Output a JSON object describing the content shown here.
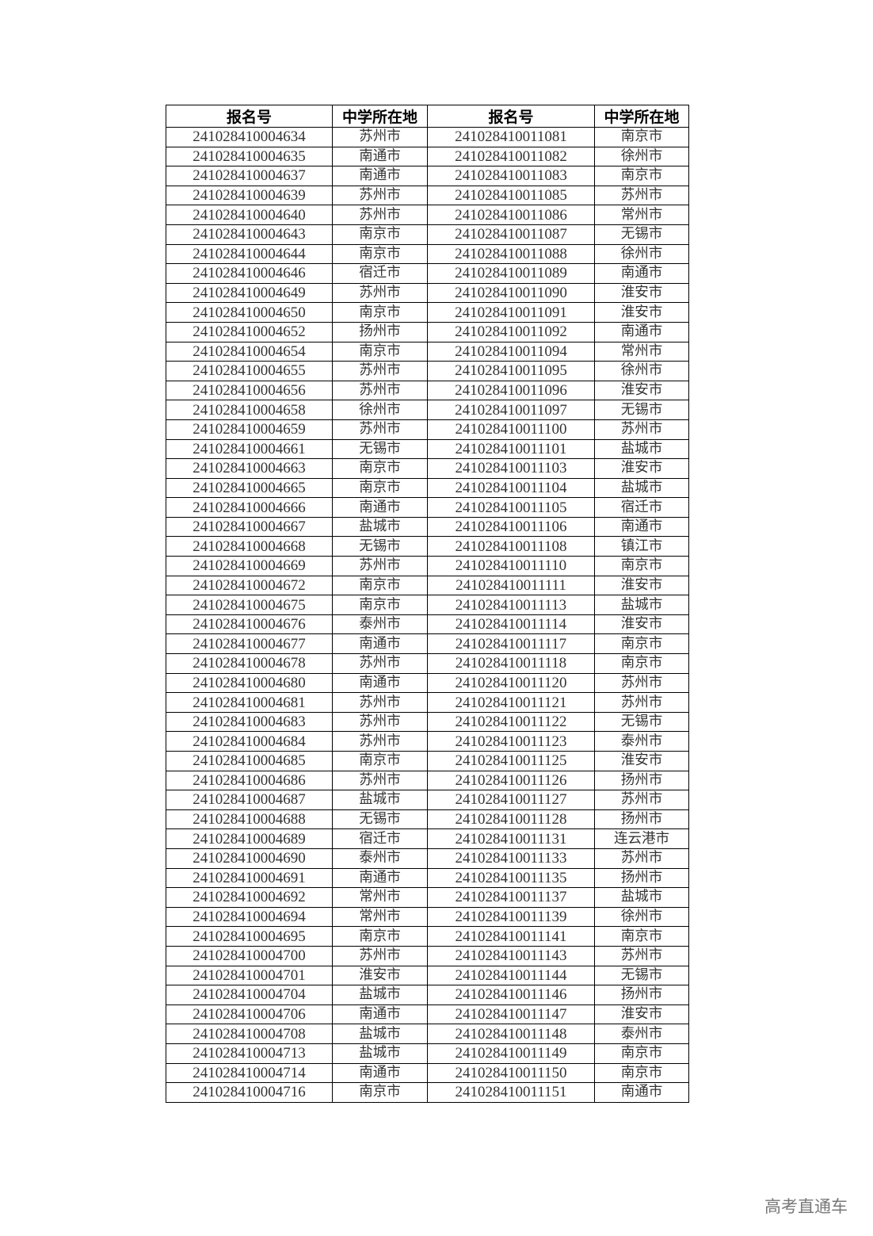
{
  "table": {
    "headers": [
      "报名号",
      "中学所在地",
      "报名号",
      "中学所在地"
    ],
    "rows": [
      [
        "241028410004634",
        "苏州市",
        "241028410011081",
        "南京市"
      ],
      [
        "241028410004635",
        "南通市",
        "241028410011082",
        "徐州市"
      ],
      [
        "241028410004637",
        "南通市",
        "241028410011083",
        "南京市"
      ],
      [
        "241028410004639",
        "苏州市",
        "241028410011085",
        "苏州市"
      ],
      [
        "241028410004640",
        "苏州市",
        "241028410011086",
        "常州市"
      ],
      [
        "241028410004643",
        "南京市",
        "241028410011087",
        "无锡市"
      ],
      [
        "241028410004644",
        "南京市",
        "241028410011088",
        "徐州市"
      ],
      [
        "241028410004646",
        "宿迁市",
        "241028410011089",
        "南通市"
      ],
      [
        "241028410004649",
        "苏州市",
        "241028410011090",
        "淮安市"
      ],
      [
        "241028410004650",
        "南京市",
        "241028410011091",
        "淮安市"
      ],
      [
        "241028410004652",
        "扬州市",
        "241028410011092",
        "南通市"
      ],
      [
        "241028410004654",
        "南京市",
        "241028410011094",
        "常州市"
      ],
      [
        "241028410004655",
        "苏州市",
        "241028410011095",
        "徐州市"
      ],
      [
        "241028410004656",
        "苏州市",
        "241028410011096",
        "淮安市"
      ],
      [
        "241028410004658",
        "徐州市",
        "241028410011097",
        "无锡市"
      ],
      [
        "241028410004659",
        "苏州市",
        "241028410011100",
        "苏州市"
      ],
      [
        "241028410004661",
        "无锡市",
        "241028410011101",
        "盐城市"
      ],
      [
        "241028410004663",
        "南京市",
        "241028410011103",
        "淮安市"
      ],
      [
        "241028410004665",
        "南京市",
        "241028410011104",
        "盐城市"
      ],
      [
        "241028410004666",
        "南通市",
        "241028410011105",
        "宿迁市"
      ],
      [
        "241028410004667",
        "盐城市",
        "241028410011106",
        "南通市"
      ],
      [
        "241028410004668",
        "无锡市",
        "241028410011108",
        "镇江市"
      ],
      [
        "241028410004669",
        "苏州市",
        "241028410011110",
        "南京市"
      ],
      [
        "241028410004672",
        "南京市",
        "241028410011111",
        "淮安市"
      ],
      [
        "241028410004675",
        "南京市",
        "241028410011113",
        "盐城市"
      ],
      [
        "241028410004676",
        "泰州市",
        "241028410011114",
        "淮安市"
      ],
      [
        "241028410004677",
        "南通市",
        "241028410011117",
        "南京市"
      ],
      [
        "241028410004678",
        "苏州市",
        "241028410011118",
        "南京市"
      ],
      [
        "241028410004680",
        "南通市",
        "241028410011120",
        "苏州市"
      ],
      [
        "241028410004681",
        "苏州市",
        "241028410011121",
        "苏州市"
      ],
      [
        "241028410004683",
        "苏州市",
        "241028410011122",
        "无锡市"
      ],
      [
        "241028410004684",
        "苏州市",
        "241028410011123",
        "泰州市"
      ],
      [
        "241028410004685",
        "南京市",
        "241028410011125",
        "淮安市"
      ],
      [
        "241028410004686",
        "苏州市",
        "241028410011126",
        "扬州市"
      ],
      [
        "241028410004687",
        "盐城市",
        "241028410011127",
        "苏州市"
      ],
      [
        "241028410004688",
        "无锡市",
        "241028410011128",
        "扬州市"
      ],
      [
        "241028410004689",
        "宿迁市",
        "241028410011131",
        "连云港市"
      ],
      [
        "241028410004690",
        "泰州市",
        "241028410011133",
        "苏州市"
      ],
      [
        "241028410004691",
        "南通市",
        "241028410011135",
        "扬州市"
      ],
      [
        "241028410004692",
        "常州市",
        "241028410011137",
        "盐城市"
      ],
      [
        "241028410004694",
        "常州市",
        "241028410011139",
        "徐州市"
      ],
      [
        "241028410004695",
        "南京市",
        "241028410011141",
        "南京市"
      ],
      [
        "241028410004700",
        "苏州市",
        "241028410011143",
        "苏州市"
      ],
      [
        "241028410004701",
        "淮安市",
        "241028410011144",
        "无锡市"
      ],
      [
        "241028410004704",
        "盐城市",
        "241028410011146",
        "扬州市"
      ],
      [
        "241028410004706",
        "南通市",
        "241028410011147",
        "淮安市"
      ],
      [
        "241028410004708",
        "盐城市",
        "241028410011148",
        "泰州市"
      ],
      [
        "241028410004713",
        "盐城市",
        "241028410011149",
        "南京市"
      ],
      [
        "241028410004714",
        "南通市",
        "241028410011150",
        "南京市"
      ],
      [
        "241028410004716",
        "南京市",
        "241028410011151",
        "南通市"
      ]
    ]
  },
  "watermark": "高考直通车"
}
